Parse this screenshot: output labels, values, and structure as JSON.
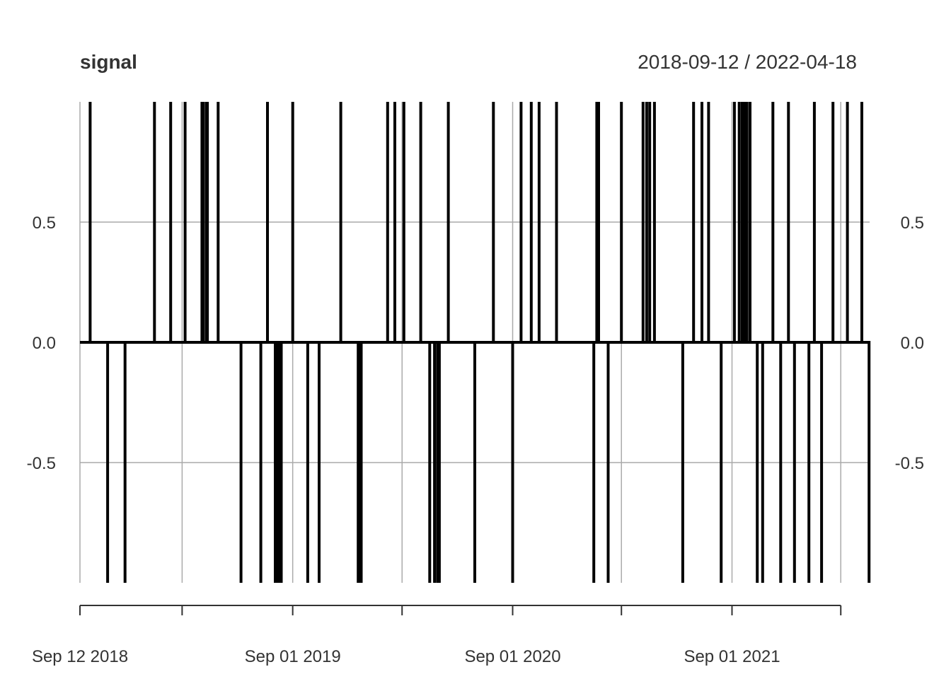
{
  "chart_data": {
    "type": "line",
    "title": "signal",
    "date_range": "2018-09-12 / 2022-04-18",
    "x_start": "2018-09-12",
    "x_end": "2022-04-18",
    "ylim": [
      -1,
      1
    ],
    "y_ticks": [
      {
        "value": 0.5,
        "label": "0.5"
      },
      {
        "value": 0.0,
        "label": "0.0"
      },
      {
        "value": -0.5,
        "label": "-0.5"
      }
    ],
    "x_major_ticks": [
      {
        "date": "2018-09-12",
        "label": "Sep 12 2018"
      },
      {
        "date": "2019-09-01",
        "label": "Sep 01 2019"
      },
      {
        "date": "2020-09-01",
        "label": "Sep 01 2020"
      },
      {
        "date": "2021-09-01",
        "label": "Sep 01 2021"
      }
    ],
    "x_minor_ticks": [
      "2019-03-01",
      "2020-03-01",
      "2021-03-01",
      "2022-03-01"
    ],
    "grid": true,
    "series": [
      {
        "events": [
          {
            "date": "2018-09-29",
            "value": 1
          },
          {
            "date": "2018-10-28",
            "value": -1
          },
          {
            "date": "2018-11-26",
            "value": -1
          },
          {
            "date": "2019-01-14",
            "value": 1
          },
          {
            "date": "2019-02-10",
            "value": 1
          },
          {
            "date": "2019-03-06",
            "value": 1
          },
          {
            "date": "2019-04-03",
            "value": 1
          },
          {
            "date": "2019-04-05",
            "value": 1
          },
          {
            "date": "2019-04-10",
            "value": 1
          },
          {
            "date": "2019-04-12",
            "value": 1
          },
          {
            "date": "2019-04-30",
            "value": 1
          },
          {
            "date": "2019-06-07",
            "value": -1
          },
          {
            "date": "2019-07-10",
            "value": -1
          },
          {
            "date": "2019-07-21",
            "value": 1
          },
          {
            "date": "2019-08-03",
            "value": -1
          },
          {
            "date": "2019-08-06",
            "value": -1
          },
          {
            "date": "2019-08-08",
            "value": -1
          },
          {
            "date": "2019-08-11",
            "value": -1
          },
          {
            "date": "2019-08-13",
            "value": -1
          },
          {
            "date": "2019-09-01",
            "value": 1
          },
          {
            "date": "2019-09-26",
            "value": -1
          },
          {
            "date": "2019-10-15",
            "value": -1
          },
          {
            "date": "2019-11-20",
            "value": 1
          },
          {
            "date": "2019-12-19",
            "value": -1
          },
          {
            "date": "2019-12-22",
            "value": -1
          },
          {
            "date": "2019-12-24",
            "value": -1
          },
          {
            "date": "2020-02-06",
            "value": 1
          },
          {
            "date": "2020-02-18",
            "value": 1
          },
          {
            "date": "2020-03-04",
            "value": 1
          },
          {
            "date": "2020-04-01",
            "value": 1
          },
          {
            "date": "2020-04-16",
            "value": -1
          },
          {
            "date": "2020-04-24",
            "value": -1
          },
          {
            "date": "2020-04-29",
            "value": -1
          },
          {
            "date": "2020-05-02",
            "value": -1
          },
          {
            "date": "2020-05-17",
            "value": 1
          },
          {
            "date": "2020-06-30",
            "value": -1
          },
          {
            "date": "2020-07-31",
            "value": 1
          },
          {
            "date": "2020-09-01",
            "value": -1
          },
          {
            "date": "2020-09-15",
            "value": 1
          },
          {
            "date": "2020-10-02",
            "value": 1
          },
          {
            "date": "2020-10-15",
            "value": 1
          },
          {
            "date": "2020-11-13",
            "value": 1
          },
          {
            "date": "2021-01-14",
            "value": -1
          },
          {
            "date": "2021-01-19",
            "value": 1
          },
          {
            "date": "2021-01-22",
            "value": 1
          },
          {
            "date": "2021-02-07",
            "value": -1
          },
          {
            "date": "2021-03-01",
            "value": 1
          },
          {
            "date": "2021-04-06",
            "value": 1
          },
          {
            "date": "2021-04-12",
            "value": 1
          },
          {
            "date": "2021-04-17",
            "value": 1
          },
          {
            "date": "2021-04-25",
            "value": 1
          },
          {
            "date": "2021-06-11",
            "value": -1
          },
          {
            "date": "2021-06-29",
            "value": 1
          },
          {
            "date": "2021-07-13",
            "value": 1
          },
          {
            "date": "2021-07-24",
            "value": 1
          },
          {
            "date": "2021-08-14",
            "value": -1
          },
          {
            "date": "2021-09-05",
            "value": 1
          },
          {
            "date": "2021-09-13",
            "value": 1
          },
          {
            "date": "2021-09-18",
            "value": 1
          },
          {
            "date": "2021-09-22",
            "value": 1
          },
          {
            "date": "2021-09-26",
            "value": 1
          },
          {
            "date": "2021-10-01",
            "value": 1
          },
          {
            "date": "2021-10-13",
            "value": -1
          },
          {
            "date": "2021-10-22",
            "value": -1
          },
          {
            "date": "2021-11-08",
            "value": 1
          },
          {
            "date": "2021-11-21",
            "value": -1
          },
          {
            "date": "2021-12-04",
            "value": 1
          },
          {
            "date": "2021-12-14",
            "value": -1
          },
          {
            "date": "2022-01-07",
            "value": -1
          },
          {
            "date": "2022-01-16",
            "value": 1
          },
          {
            "date": "2022-01-28",
            "value": -1
          },
          {
            "date": "2022-02-16",
            "value": 1
          },
          {
            "date": "2022-03-12",
            "value": 1
          },
          {
            "date": "2022-04-05",
            "value": 1
          },
          {
            "date": "2022-04-17",
            "value": -1
          }
        ]
      }
    ]
  }
}
